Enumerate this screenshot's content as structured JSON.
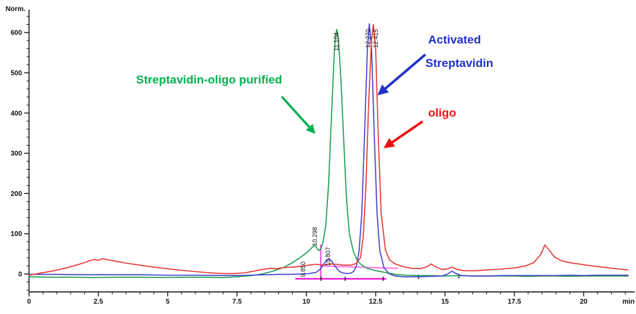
{
  "axes": {
    "y_label": "Norm.",
    "x_unit_label": "min",
    "y_ticks": [
      {
        "v": 0,
        "label": "0"
      },
      {
        "v": 100,
        "label": "100"
      },
      {
        "v": 200,
        "label": "200"
      },
      {
        "v": 300,
        "label": "300"
      },
      {
        "v": 400,
        "label": "400"
      },
      {
        "v": 500,
        "label": "500"
      },
      {
        "v": 600,
        "label": "600"
      }
    ],
    "x_ticks": [
      {
        "v": 0,
        "label": "0"
      },
      {
        "v": 2.5,
        "label": "2.5"
      },
      {
        "v": 5,
        "label": "5"
      },
      {
        "v": 7.5,
        "label": "7.5"
      },
      {
        "v": 10,
        "label": "10"
      },
      {
        "v": 12.5,
        "label": "12.5"
      },
      {
        "v": 15,
        "label": "15"
      },
      {
        "v": 17.5,
        "label": "17.5"
      },
      {
        "v": 20,
        "label": "20"
      }
    ],
    "x_minor_step": 0.5,
    "y_minor_step": 20,
    "x_range": [
      0,
      21.8
    ],
    "y_range": [
      -45,
      655
    ]
  },
  "annotations": {
    "purified": {
      "text": "Streptavidin-oligo purified",
      "color": "#00B050"
    },
    "activated": {
      "line1": "Activated",
      "line2": "Streptavidin",
      "color": "#2032C8"
    },
    "oligo": {
      "text": "oligo",
      "color": "#EE1111"
    }
  },
  "peak_labels": [
    {
      "text": "9.850",
      "rt": 9.85
    },
    {
      "text": "10.298",
      "rt": 10.298
    },
    {
      "text": "10.807",
      "rt": 10.807
    },
    {
      "text": "11.104",
      "rt": 11.104
    },
    {
      "text": "12.270",
      "rt": 12.27
    },
    {
      "text": "12.415",
      "rt": 12.415
    }
  ],
  "chart_data": {
    "type": "line",
    "title": "",
    "xlabel": "min",
    "ylabel": "Norm.",
    "xlim": [
      0,
      21.8
    ],
    "ylim": [
      -45,
      655
    ],
    "grid": false,
    "legend": "none (arrow annotations identify traces)",
    "series": [
      {
        "name": "Streptavidin-oligo purified",
        "color": "#1E9E50",
        "peak_rt": [
          9.85,
          10.298,
          11.104
        ],
        "points": [
          [
            0,
            -7
          ],
          [
            0.8,
            -8
          ],
          [
            1.6,
            -8
          ],
          [
            2.4,
            -9
          ],
          [
            3.2,
            -8
          ],
          [
            4,
            -8
          ],
          [
            4.8,
            -9
          ],
          [
            5.6,
            -8
          ],
          [
            6.4,
            -8
          ],
          [
            7,
            -9
          ],
          [
            7.5,
            -7
          ],
          [
            8,
            -4
          ],
          [
            8.4,
            0
          ],
          [
            8.8,
            7
          ],
          [
            9.2,
            17
          ],
          [
            9.5,
            28
          ],
          [
            9.8,
            42
          ],
          [
            10,
            52
          ],
          [
            10.15,
            62
          ],
          [
            10.3,
            72
          ],
          [
            10.38,
            64
          ],
          [
            10.45,
            58
          ],
          [
            10.52,
            62
          ],
          [
            10.6,
            78
          ],
          [
            10.7,
            120
          ],
          [
            10.8,
            220
          ],
          [
            10.9,
            380
          ],
          [
            11,
            540
          ],
          [
            11.05,
            590
          ],
          [
            11.1,
            608
          ],
          [
            11.16,
            585
          ],
          [
            11.25,
            480
          ],
          [
            11.35,
            330
          ],
          [
            11.45,
            185
          ],
          [
            11.55,
            100
          ],
          [
            11.7,
            55
          ],
          [
            11.85,
            32
          ],
          [
            12,
            22
          ],
          [
            12.2,
            14
          ],
          [
            12.4,
            10
          ],
          [
            12.6,
            7
          ],
          [
            12.9,
            3
          ],
          [
            13.2,
            -1
          ],
          [
            13.6,
            -3
          ],
          [
            14,
            -4
          ],
          [
            14.5,
            -4
          ],
          [
            15,
            -5
          ],
          [
            15.5,
            -4
          ],
          [
            16,
            -5
          ],
          [
            16.5,
            -5
          ],
          [
            17,
            -5
          ],
          [
            17.5,
            -5
          ],
          [
            18,
            -6
          ],
          [
            18.5,
            -5
          ],
          [
            19,
            -5
          ],
          [
            19.5,
            -6
          ],
          [
            20,
            -5
          ],
          [
            20.5,
            -5
          ],
          [
            21,
            -5
          ],
          [
            21.6,
            -5
          ]
        ]
      },
      {
        "name": "Activated Streptavidin",
        "color": "#4444CC",
        "peak_rt": [
          10.807,
          12.27
        ],
        "points": [
          [
            0,
            -1
          ],
          [
            1,
            -1
          ],
          [
            2,
            -2
          ],
          [
            3,
            -2
          ],
          [
            4,
            -2
          ],
          [
            5,
            -3
          ],
          [
            6,
            -3
          ],
          [
            7,
            -4
          ],
          [
            7.5,
            -4
          ],
          [
            8,
            -3
          ],
          [
            8.5,
            -2
          ],
          [
            9,
            -1
          ],
          [
            9.4,
            -1
          ],
          [
            9.8,
            0
          ],
          [
            10.1,
            1
          ],
          [
            10.35,
            4
          ],
          [
            10.5,
            12
          ],
          [
            10.65,
            27
          ],
          [
            10.8,
            38
          ],
          [
            10.9,
            33
          ],
          [
            11.05,
            18
          ],
          [
            11.2,
            6
          ],
          [
            11.35,
            2
          ],
          [
            11.5,
            1
          ],
          [
            11.6,
            2
          ],
          [
            11.7,
            6
          ],
          [
            11.8,
            18
          ],
          [
            11.9,
            55
          ],
          [
            12,
            150
          ],
          [
            12.1,
            350
          ],
          [
            12.2,
            555
          ],
          [
            12.27,
            622
          ],
          [
            12.35,
            565
          ],
          [
            12.45,
            345
          ],
          [
            12.55,
            150
          ],
          [
            12.65,
            58
          ],
          [
            12.8,
            15
          ],
          [
            13,
            0
          ],
          [
            13.2,
            -5
          ],
          [
            13.5,
            -7
          ],
          [
            14,
            -7
          ],
          [
            14.5,
            -6
          ],
          [
            14.9,
            -5
          ],
          [
            15.1,
            0
          ],
          [
            15.25,
            7
          ],
          [
            15.4,
            1
          ],
          [
            15.6,
            -4
          ],
          [
            16,
            -5
          ],
          [
            16.5,
            -5
          ],
          [
            17,
            -4
          ],
          [
            17.5,
            -4
          ],
          [
            18,
            -4
          ],
          [
            18.5,
            -4
          ],
          [
            19,
            -4
          ],
          [
            19.5,
            -3
          ],
          [
            20,
            -4
          ],
          [
            20.5,
            -3
          ],
          [
            21,
            -3
          ],
          [
            21.6,
            -3
          ]
        ]
      },
      {
        "name": "oligo",
        "color": "#E53935",
        "peak_rt": [
          12.415
        ],
        "points": [
          [
            0,
            -3
          ],
          [
            0.4,
            2
          ],
          [
            0.9,
            8
          ],
          [
            1.4,
            16
          ],
          [
            1.9,
            26
          ],
          [
            2.2,
            33
          ],
          [
            2.35,
            36
          ],
          [
            2.5,
            34
          ],
          [
            2.65,
            38
          ],
          [
            2.8,
            36
          ],
          [
            3.1,
            32
          ],
          [
            3.5,
            27
          ],
          [
            4,
            22
          ],
          [
            4.5,
            17
          ],
          [
            5,
            13
          ],
          [
            5.5,
            9
          ],
          [
            6,
            6
          ],
          [
            6.5,
            3
          ],
          [
            7,
            1
          ],
          [
            7.4,
            1
          ],
          [
            7.8,
            3
          ],
          [
            8.1,
            7
          ],
          [
            8.4,
            11
          ],
          [
            8.7,
            14
          ],
          [
            8.9,
            13
          ],
          [
            9.2,
            16
          ],
          [
            9.5,
            17
          ],
          [
            9.8,
            19
          ],
          [
            10.1,
            22
          ],
          [
            10.35,
            24
          ],
          [
            10.6,
            22
          ],
          [
            10.85,
            25
          ],
          [
            11.1,
            24
          ],
          [
            11.35,
            22
          ],
          [
            11.6,
            22
          ],
          [
            11.8,
            26
          ],
          [
            11.95,
            40
          ],
          [
            12.05,
            90
          ],
          [
            12.15,
            220
          ],
          [
            12.25,
            430
          ],
          [
            12.35,
            580
          ],
          [
            12.415,
            620
          ],
          [
            12.5,
            560
          ],
          [
            12.6,
            330
          ],
          [
            12.7,
            150
          ],
          [
            12.85,
            60
          ],
          [
            13,
            35
          ],
          [
            13.2,
            25
          ],
          [
            13.5,
            18
          ],
          [
            13.8,
            14
          ],
          [
            14.1,
            13
          ],
          [
            14.35,
            18
          ],
          [
            14.5,
            25
          ],
          [
            14.65,
            18
          ],
          [
            14.9,
            11
          ],
          [
            15.1,
            13
          ],
          [
            15.25,
            17
          ],
          [
            15.45,
            11
          ],
          [
            15.7,
            8
          ],
          [
            16.1,
            8
          ],
          [
            16.5,
            10
          ],
          [
            17,
            12
          ],
          [
            17.5,
            15
          ],
          [
            17.9,
            20
          ],
          [
            18.2,
            28
          ],
          [
            18.45,
            48
          ],
          [
            18.6,
            72
          ],
          [
            18.75,
            60
          ],
          [
            18.95,
            42
          ],
          [
            19.2,
            33
          ],
          [
            19.5,
            28
          ],
          [
            19.9,
            24
          ],
          [
            20.3,
            20
          ],
          [
            20.8,
            16
          ],
          [
            21.3,
            12
          ],
          [
            21.6,
            10
          ]
        ]
      }
    ],
    "integration_overlay": {
      "color": "#EE22DD",
      "baseline_low": [
        [
          9.6,
          -12
        ],
        [
          12.88,
          -12
        ]
      ],
      "baseline_high": [
        [
          10.52,
          20
        ],
        [
          13.3,
          14
        ]
      ],
      "vertical_drop": [
        [
          10.52,
          -12
        ],
        [
          10.52,
          73
        ]
      ],
      "tick_marks": [
        [
          10.53,
          -12
        ],
        [
          11.4,
          -12
        ],
        [
          12.77,
          -12
        ],
        [
          14.05,
          -7
        ],
        [
          15.5,
          -6
        ]
      ]
    }
  }
}
